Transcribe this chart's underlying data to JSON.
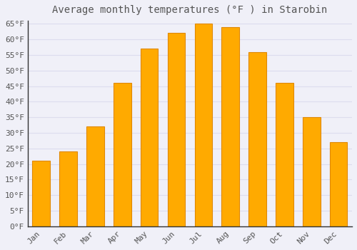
{
  "title": "Average monthly temperatures (°F ) in Starobin",
  "months": [
    "Jan",
    "Feb",
    "Mar",
    "Apr",
    "May",
    "Jun",
    "Jul",
    "Aug",
    "Sep",
    "Oct",
    "Nov",
    "Dec"
  ],
  "values": [
    21,
    24,
    32,
    46,
    57,
    62,
    65,
    64,
    56,
    46,
    35,
    27
  ],
  "bar_color": "#FFAA00",
  "bar_edge_color": "#E08800",
  "background_color": "#F0F0F8",
  "plot_bg_color": "#F0F0F8",
  "grid_color": "#DDDDEE",
  "text_color": "#555555",
  "title_color": "#555555",
  "axis_color": "#333333",
  "ytick_min": 0,
  "ytick_max": 65,
  "ytick_step": 5,
  "title_fontsize": 10,
  "tick_fontsize": 8,
  "font_family": "monospace",
  "bar_width": 0.65
}
